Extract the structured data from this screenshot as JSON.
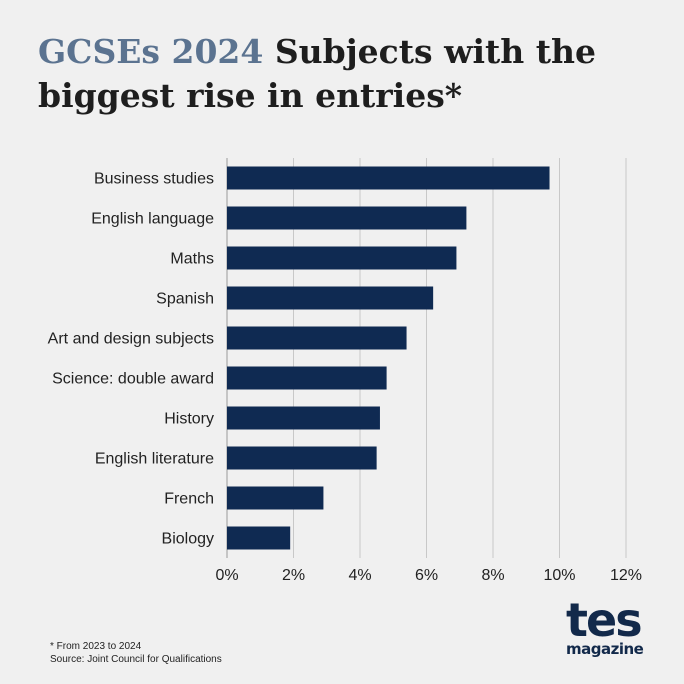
{
  "header": {
    "title_accent": "GCSEs 2024",
    "title_rest": " Subjects with the biggest rise in entries*"
  },
  "chart_data": {
    "type": "bar",
    "orientation": "horizontal",
    "categories": [
      "Business studies",
      "English language",
      "Maths",
      "Spanish",
      "Art and design subjects",
      "Science: double award",
      "History",
      "English literature",
      "French",
      "Biology"
    ],
    "values": [
      9.7,
      7.2,
      6.9,
      6.2,
      5.4,
      4.8,
      4.6,
      4.5,
      2.9,
      1.9
    ],
    "xlim": [
      0,
      12
    ],
    "xticks": [
      0,
      2,
      4,
      6,
      8,
      10,
      12
    ],
    "tick_labels": [
      "0%",
      "2%",
      "4%",
      "6%",
      "8%",
      "10%",
      "12%"
    ],
    "grid": "vertical",
    "bar_color": "#0f2a52",
    "grid_color": "#c8c8c8"
  },
  "footnotes": {
    "note": "* From 2023 to 2024",
    "source": "Source:  Joint Council for Qualifications"
  },
  "logo": {
    "main": "tes",
    "sub": "magazine"
  }
}
